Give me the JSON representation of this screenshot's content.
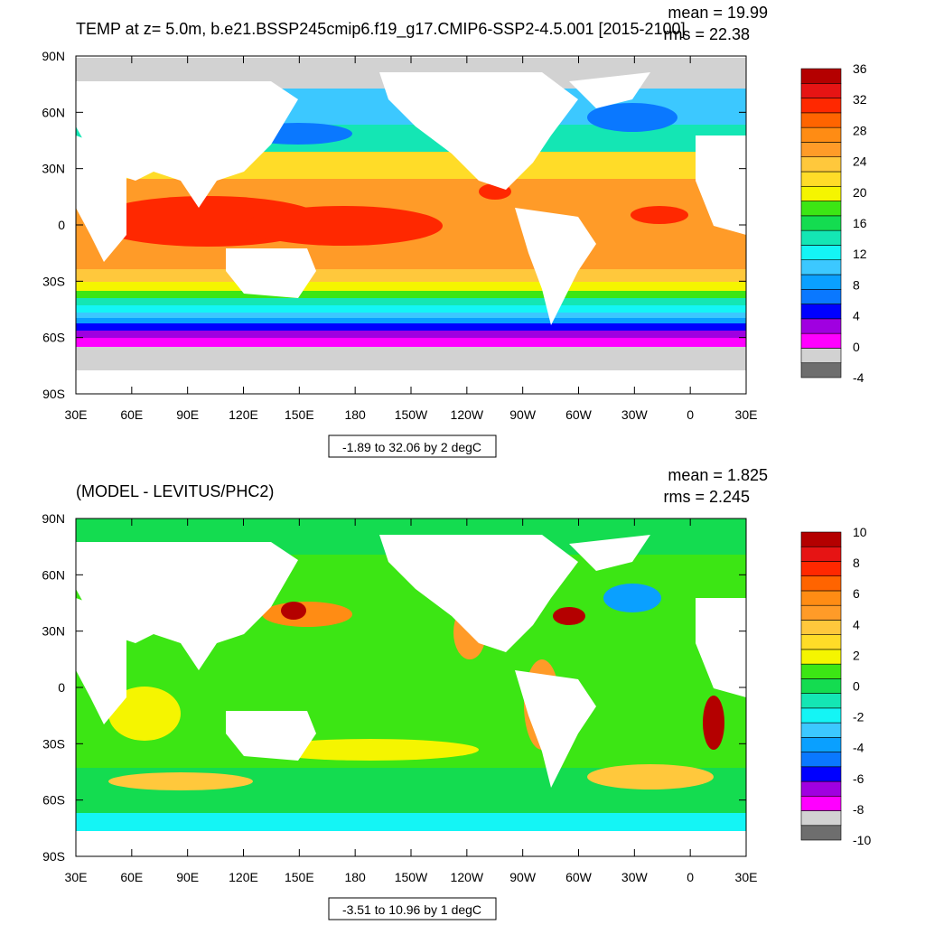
{
  "chart_data": [
    {
      "type": "heatmap",
      "title": "TEMP at z=   5.0m, b.e21.BSSP245cmip6.f19_g17.CMIP6-SSP2-4.5.001 [2015-2100]",
      "mean_label": "mean = 19.99",
      "rms_label": "rms = 22.38",
      "x_ticks": [
        "30E",
        "60E",
        "90E",
        "120E",
        "150E",
        "180",
        "150W",
        "120W",
        "90W",
        "60W",
        "30W",
        "0",
        "30E"
      ],
      "y_ticks": [
        "90N",
        "60N",
        "30N",
        "0",
        "30S",
        "60S",
        "90S"
      ],
      "xlim": [
        30,
        390
      ],
      "ylim": [
        -90,
        90
      ],
      "range_label": "-1.89 to 32.06 by 2 degC",
      "colorbar": {
        "min": -4,
        "max": 36,
        "step": 2,
        "labels": [
          "36",
          "32",
          "28",
          "24",
          "20",
          "16",
          "12",
          "8",
          "4",
          "0",
          "-4"
        ],
        "colors": [
          "#6e6e6e",
          "#d2d2d2",
          "#ff00ff",
          "#a000e0",
          "#0000ff",
          "#0a78ff",
          "#0aa0ff",
          "#3cc8ff",
          "#14f5f5",
          "#14e6b4",
          "#14dc50",
          "#3ce614",
          "#f5f500",
          "#ffdc28",
          "#ffc83c",
          "#ff9b28",
          "#ff8c14",
          "#ff6400",
          "#ff2800",
          "#e61414",
          "#b40000"
        ]
      }
    },
    {
      "type": "heatmap",
      "title": "(MODEL - LEVITUS/PHC2)",
      "mean_label": "mean = 1.825",
      "rms_label": "rms = 2.245",
      "x_ticks": [
        "30E",
        "60E",
        "90E",
        "120E",
        "150E",
        "180",
        "150W",
        "120W",
        "90W",
        "60W",
        "30W",
        "0",
        "30E"
      ],
      "y_ticks": [
        "90N",
        "60N",
        "30N",
        "0",
        "30S",
        "60S",
        "90S"
      ],
      "xlim": [
        30,
        390
      ],
      "ylim": [
        -90,
        90
      ],
      "range_label": "-3.51 to 10.96 by 1 degC",
      "colorbar": {
        "min": -10,
        "max": 10,
        "step": 1,
        "labels": [
          "10",
          "8",
          "6",
          "4",
          "2",
          "0",
          "-2",
          "-4",
          "-6",
          "-8",
          "-10"
        ],
        "colors": [
          "#6e6e6e",
          "#d2d2d2",
          "#ff00ff",
          "#a000e0",
          "#0000ff",
          "#0a78ff",
          "#0aa0ff",
          "#3cc8ff",
          "#14f5f5",
          "#14e6b4",
          "#14dc50",
          "#3ce614",
          "#f5f500",
          "#ffdc28",
          "#ffc83c",
          "#ff9b28",
          "#ff8c14",
          "#ff6400",
          "#ff2800",
          "#e61414",
          "#b40000"
        ]
      }
    }
  ]
}
